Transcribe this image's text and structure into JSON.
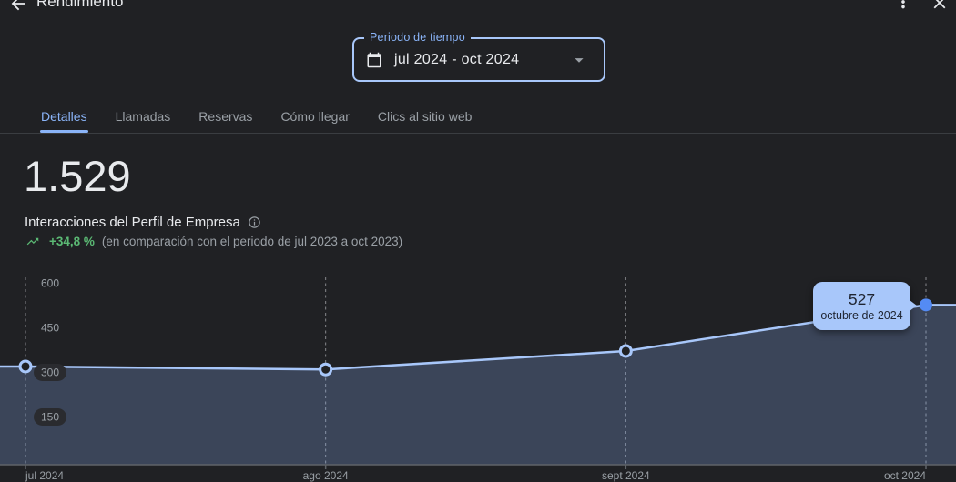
{
  "header": {
    "title": "Rendimiento",
    "back_icon": "arrow-back",
    "more_icon": "kebab-menu",
    "close_icon": "close"
  },
  "period_selector": {
    "label": "Periodo de tiempo",
    "value": "jul 2024 - oct 2024",
    "leading_icon": "calendar-icon",
    "trailing_icon": "arrow-drop-down-icon"
  },
  "tabs": [
    {
      "label": "Detalles",
      "active": true
    },
    {
      "label": "Llamadas",
      "active": false
    },
    {
      "label": "Reservas",
      "active": false
    },
    {
      "label": "Cómo llegar",
      "active": false
    },
    {
      "label": "Clics al sitio web",
      "active": false
    }
  ],
  "metric": {
    "value": "1.529",
    "label": "Interacciones del Perfil de Empresa",
    "info_icon": "info-icon",
    "trend_icon": "trending-up-icon",
    "delta": "+34,8 %",
    "comparison": "(en comparación con el periodo de jul 2023 a oct 2023)"
  },
  "tooltip": {
    "value": "527",
    "label": "octubre de 2024"
  },
  "chart_data": {
    "type": "area",
    "title": "Interacciones del Perfil de Empresa",
    "x": [
      "jul 2024",
      "ago 2024",
      "sept 2024",
      "oct 2024"
    ],
    "series": [
      {
        "name": "Interacciones",
        "values": [
          320,
          310,
          372,
          527
        ]
      }
    ],
    "total": 1529,
    "yticks": [
      600,
      450,
      300,
      150
    ],
    "ylim": [
      0,
      650
    ],
    "grid": "vertical-dashed",
    "legend": "none",
    "highlighted_point": {
      "x": "oct 2024",
      "value": 527,
      "tooltip_label": "octubre de 2024"
    }
  },
  "colors": {
    "background": "#202124",
    "text_primary": "#e8eaed",
    "text_secondary": "#9aa0a6",
    "accent_blue": "#8ab4f8",
    "chart_line": "#a8c7fa",
    "chart_fill": "rgba(138,180,248,0.25)",
    "highlight_dot": "#548bf4",
    "tooltip_bg": "#a8c7fa",
    "tooltip_text": "#1f2532",
    "positive_green": "#5bb974"
  }
}
